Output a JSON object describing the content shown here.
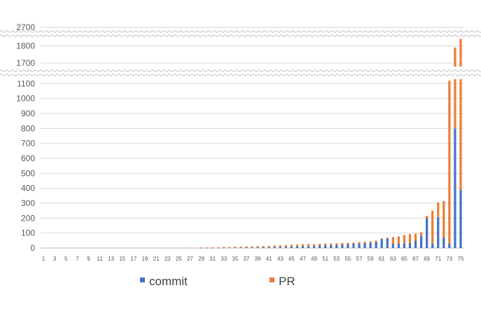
{
  "chart_data": {
    "type": "bar",
    "stacked": true,
    "broken_y_axis": true,
    "categories": [
      "1",
      "2",
      "3",
      "4",
      "5",
      "6",
      "7",
      "8",
      "9",
      "10",
      "11",
      "12",
      "13",
      "14",
      "15",
      "16",
      "17",
      "18",
      "19",
      "20",
      "21",
      "22",
      "23",
      "24",
      "25",
      "26",
      "27",
      "28",
      "29",
      "30",
      "31",
      "32",
      "33",
      "34",
      "35",
      "36",
      "37",
      "38",
      "39",
      "40",
      "41",
      "42",
      "43",
      "44",
      "45",
      "46",
      "47",
      "48",
      "49",
      "50",
      "51",
      "52",
      "53",
      "54",
      "55",
      "56",
      "57",
      "58",
      "59",
      "60",
      "61",
      "62",
      "63",
      "64",
      "65",
      "66",
      "67",
      "68",
      "69",
      "70",
      "71",
      "72",
      "73",
      "74",
      "75"
    ],
    "series": [
      {
        "name": "commit",
        "color": "#4472c4",
        "values": [
          0,
          0,
          0,
          0,
          0,
          0,
          0,
          0,
          0,
          0,
          0,
          0,
          0,
          0,
          0,
          0,
          0,
          0,
          0,
          0,
          0,
          0,
          0,
          0,
          0,
          0,
          0,
          0,
          1,
          1,
          1,
          1,
          2,
          2,
          3,
          3,
          4,
          4,
          5,
          5,
          6,
          7,
          8,
          9,
          10,
          11,
          12,
          13,
          15,
          16,
          18,
          20,
          22,
          24,
          26,
          28,
          30,
          32,
          35,
          40,
          60,
          65,
          28,
          30,
          32,
          34,
          50,
          80,
          200,
          30,
          205,
          70,
          30,
          800,
          390
        ]
      },
      {
        "name": "PR",
        "color": "#ed7d31",
        "values": [
          0,
          0,
          0,
          0,
          0,
          0,
          0,
          0,
          0,
          0,
          0,
          0,
          0,
          0,
          0,
          0,
          0,
          0,
          0,
          0,
          0,
          1,
          1,
          1,
          1,
          2,
          2,
          2,
          3,
          3,
          4,
          4,
          5,
          5,
          6,
          6,
          7,
          7,
          8,
          8,
          9,
          10,
          10,
          11,
          12,
          12,
          13,
          14,
          10,
          12,
          12,
          10,
          10,
          10,
          8,
          8,
          10,
          10,
          10,
          10,
          5,
          5,
          45,
          48,
          55,
          60,
          45,
          25,
          15,
          220,
          100,
          245,
          1090,
          990,
          1450
        ]
      }
    ],
    "y_ticks": [
      0,
      100,
      200,
      300,
      400,
      500,
      600,
      700,
      800,
      900,
      1000,
      1100,
      1700,
      1800,
      2700
    ],
    "x_tick_labels": [
      "1",
      "3",
      "5",
      "7",
      "9",
      "11",
      "13",
      "15",
      "17",
      "19",
      "21",
      "23",
      "25",
      "27",
      "29",
      "31",
      "33",
      "35",
      "37",
      "39",
      "41",
      "43",
      "45",
      "47",
      "49",
      "51",
      "53",
      "55",
      "57",
      "59",
      "61",
      "63",
      "65",
      "67",
      "69",
      "71",
      "73",
      "75"
    ],
    "y_segments": [
      {
        "range": [
          0,
          1130
        ]
      },
      {
        "range": [
          1680,
          1850
        ]
      },
      {
        "range": [
          2680,
          2780
        ]
      }
    ],
    "grid": true,
    "legend_position": "bottom"
  }
}
